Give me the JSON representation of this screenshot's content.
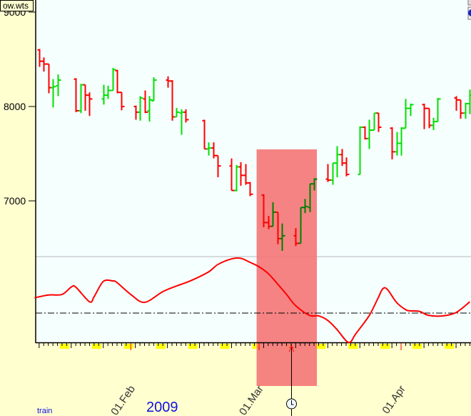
{
  "header": {
    "file_label": "ow.wts"
  },
  "footer": {
    "year": "2009",
    "mode_label": "train"
  },
  "colors": {
    "up": "#00e000",
    "down": "#ff0000",
    "up_dark": "#008000",
    "highlight": "#f47a7a",
    "indicator": "#ff0000",
    "plot_bg": "#f5fffe",
    "panel_bg": "#ffffd0",
    "weekend": "#ffff00"
  },
  "icons": [
    "scroll-button-icon",
    "globe-icon",
    "clock-icon",
    "cursor-marker-icon"
  ],
  "chart_data": {
    "type": "ohlc",
    "ylim": [
      6270,
      9120
    ],
    "grid": false,
    "y_ticks": [
      "9000",
      "8000",
      "7000"
    ],
    "x_ticks": [
      {
        "date": "2009-02-01",
        "label": "01.Feb"
      },
      {
        "date": "2009-03-01",
        "label": "01.Mar"
      },
      {
        "date": "2009-04-01",
        "label": "01.Apr"
      }
    ],
    "highlight_range": [
      "2009-02-28",
      "2009-03-13"
    ],
    "cursor_date": "2009-03-08",
    "bars": [
      {
        "date": "2009-01-12",
        "o": 8600,
        "h": 8610,
        "l": 8420,
        "c": 8480
      },
      {
        "date": "2009-01-13",
        "o": 8480,
        "h": 8520,
        "l": 8370,
        "c": 8450
      },
      {
        "date": "2009-01-14",
        "o": 8450,
        "h": 8450,
        "l": 8140,
        "c": 8200
      },
      {
        "date": "2009-01-15",
        "o": 8200,
        "h": 8290,
        "l": 7990,
        "c": 8210
      },
      {
        "date": "2009-01-16",
        "o": 8220,
        "h": 8340,
        "l": 8110,
        "c": 8280
      },
      {
        "date": "2009-01-20",
        "o": 8290,
        "h": 8300,
        "l": 7940,
        "c": 7955
      },
      {
        "date": "2009-01-21",
        "o": 7955,
        "h": 8240,
        "l": 7930,
        "c": 8230
      },
      {
        "date": "2009-01-22",
        "o": 8230,
        "h": 8230,
        "l": 7955,
        "c": 8120
      },
      {
        "date": "2009-01-23",
        "o": 8120,
        "h": 8150,
        "l": 7900,
        "c": 8080
      },
      {
        "date": "2009-01-26",
        "o": 8080,
        "h": 8230,
        "l": 8020,
        "c": 8120
      },
      {
        "date": "2009-01-27",
        "o": 8120,
        "h": 8220,
        "l": 8080,
        "c": 8170
      },
      {
        "date": "2009-01-28",
        "o": 8170,
        "h": 8410,
        "l": 8170,
        "c": 8390
      },
      {
        "date": "2009-01-29",
        "o": 8380,
        "h": 8390,
        "l": 8140,
        "c": 8150
      },
      {
        "date": "2009-01-30",
        "o": 8150,
        "h": 8150,
        "l": 7960,
        "c": 8000
      },
      {
        "date": "2009-02-02",
        "o": 8000,
        "h": 8010,
        "l": 7860,
        "c": 7940
      },
      {
        "date": "2009-02-03",
        "o": 7940,
        "h": 8110,
        "l": 7850,
        "c": 8090
      },
      {
        "date": "2009-02-04",
        "o": 8080,
        "h": 8170,
        "l": 7930,
        "c": 7940
      },
      {
        "date": "2009-02-05",
        "o": 7955,
        "h": 8110,
        "l": 7840,
        "c": 8070
      },
      {
        "date": "2009-02-06",
        "o": 8060,
        "h": 8310,
        "l": 8060,
        "c": 8280
      },
      {
        "date": "2009-02-09",
        "o": 8280,
        "h": 8320,
        "l": 8200,
        "c": 8270
      },
      {
        "date": "2009-02-10",
        "o": 8270,
        "h": 8280,
        "l": 7850,
        "c": 7890
      },
      {
        "date": "2009-02-11",
        "o": 7890,
        "h": 7985,
        "l": 7890,
        "c": 7940
      },
      {
        "date": "2009-02-12",
        "o": 7930,
        "h": 7970,
        "l": 7700,
        "c": 7940
      },
      {
        "date": "2009-02-13",
        "o": 7940,
        "h": 7970,
        "l": 7830,
        "c": 7860
      },
      {
        "date": "2009-02-17",
        "o": 7850,
        "h": 7860,
        "l": 7550,
        "c": 7550
      },
      {
        "date": "2009-02-18",
        "o": 7550,
        "h": 7620,
        "l": 7480,
        "c": 7560
      },
      {
        "date": "2009-02-19",
        "o": 7560,
        "h": 7620,
        "l": 7450,
        "c": 7480
      },
      {
        "date": "2009-02-20",
        "o": 7480,
        "h": 7480,
        "l": 7250,
        "c": 7370
      },
      {
        "date": "2009-02-23",
        "o": 7370,
        "h": 7450,
        "l": 7110,
        "c": 7110
      },
      {
        "date": "2009-02-24",
        "o": 7110,
        "h": 7380,
        "l": 7100,
        "c": 7360
      },
      {
        "date": "2009-02-25",
        "o": 7360,
        "h": 7410,
        "l": 7160,
        "c": 7270
      },
      {
        "date": "2009-02-26",
        "o": 7270,
        "h": 7390,
        "l": 7170,
        "c": 7190
      },
      {
        "date": "2009-02-27",
        "o": 7190,
        "h": 7200,
        "l": 7050,
        "c": 7070
      },
      {
        "date": "2009-03-02",
        "o": 7060,
        "h": 7070,
        "l": 6720,
        "c": 6770
      },
      {
        "date": "2009-03-03",
        "o": 6770,
        "h": 6840,
        "l": 6700,
        "c": 6730
      },
      {
        "date": "2009-03-04",
        "o": 6730,
        "h": 6985,
        "l": 6730,
        "c": 6880
      },
      {
        "date": "2009-03-05",
        "o": 6880,
        "h": 6880,
        "l": 6540,
        "c": 6600
      },
      {
        "date": "2009-03-06",
        "o": 6600,
        "h": 6760,
        "l": 6470,
        "c": 6630
      },
      {
        "date": "2009-03-09",
        "o": 6630,
        "h": 6710,
        "l": 6520,
        "c": 6550
      },
      {
        "date": "2009-03-10",
        "o": 6550,
        "h": 6930,
        "l": 6550,
        "c": 6930
      },
      {
        "date": "2009-03-11",
        "o": 6930,
        "h": 7020,
        "l": 6870,
        "c": 6940
      },
      {
        "date": "2009-03-12",
        "o": 6930,
        "h": 7180,
        "l": 6880,
        "c": 7180
      },
      {
        "date": "2009-03-13",
        "o": 7180,
        "h": 7240,
        "l": 7110,
        "c": 7230
      },
      {
        "date": "2009-03-16",
        "o": 7230,
        "h": 7390,
        "l": 7200,
        "c": 7220
      },
      {
        "date": "2009-03-17",
        "o": 7220,
        "h": 7400,
        "l": 7170,
        "c": 7400
      },
      {
        "date": "2009-03-18",
        "o": 7400,
        "h": 7580,
        "l": 7250,
        "c": 7490
      },
      {
        "date": "2009-03-19",
        "o": 7490,
        "h": 7550,
        "l": 7370,
        "c": 7400
      },
      {
        "date": "2009-03-20",
        "o": 7400,
        "h": 7460,
        "l": 7260,
        "c": 7280
      },
      {
        "date": "2009-03-23",
        "o": 7280,
        "h": 7790,
        "l": 7280,
        "c": 7780
      },
      {
        "date": "2009-03-24",
        "o": 7780,
        "h": 7790,
        "l": 7650,
        "c": 7660
      },
      {
        "date": "2009-03-25",
        "o": 7660,
        "h": 7860,
        "l": 7550,
        "c": 7750
      },
      {
        "date": "2009-03-26",
        "o": 7750,
        "h": 7930,
        "l": 7750,
        "c": 7930
      },
      {
        "date": "2009-03-27",
        "o": 7930,
        "h": 7930,
        "l": 7730,
        "c": 7780
      },
      {
        "date": "2009-03-30",
        "o": 7770,
        "h": 7780,
        "l": 7440,
        "c": 7520
      },
      {
        "date": "2009-03-31",
        "o": 7520,
        "h": 7730,
        "l": 7480,
        "c": 7610
      },
      {
        "date": "2009-04-01",
        "o": 7610,
        "h": 7780,
        "l": 7480,
        "c": 7770
      },
      {
        "date": "2009-04-02",
        "o": 7770,
        "h": 8080,
        "l": 7770,
        "c": 7980
      },
      {
        "date": "2009-04-03",
        "o": 7980,
        "h": 8030,
        "l": 7900,
        "c": 8020
      },
      {
        "date": "2009-04-06",
        "o": 8020,
        "h": 8030,
        "l": 7760,
        "c": 7980
      },
      {
        "date": "2009-04-07",
        "o": 7980,
        "h": 7980,
        "l": 7770,
        "c": 7800
      },
      {
        "date": "2009-04-08",
        "o": 7800,
        "h": 7880,
        "l": 7750,
        "c": 7840
      },
      {
        "date": "2009-04-09",
        "o": 7840,
        "h": 8090,
        "l": 7840,
        "c": 8080
      },
      {
        "date": "2009-04-13",
        "o": 8090,
        "h": 8110,
        "l": 7955,
        "c": 8070
      },
      {
        "date": "2009-04-14",
        "o": 8070,
        "h": 8070,
        "l": 7870,
        "c": 7930
      },
      {
        "date": "2009-04-15",
        "o": 7930,
        "h": 8040,
        "l": 7870,
        "c": 8030
      },
      {
        "date": "2009-04-16",
        "o": 8030,
        "h": 8180,
        "l": 7920,
        "c": 8120
      }
    ],
    "indicator": {
      "baseline": 0,
      "ylim": [
        -0.52,
        1.0
      ],
      "points": [
        [
          "2009-01-11",
          0.27
        ],
        [
          "2009-01-14",
          0.32
        ],
        [
          "2009-01-17",
          0.33
        ],
        [
          "2009-01-19",
          0.46
        ],
        [
          "2009-01-20",
          0.46
        ],
        [
          "2009-01-23",
          0.2
        ],
        [
          "2009-01-24",
          0.29
        ],
        [
          "2009-01-26",
          0.56
        ],
        [
          "2009-01-28",
          0.57
        ],
        [
          "2009-01-29",
          0.54
        ],
        [
          "2009-02-01",
          0.33
        ],
        [
          "2009-02-04",
          0.19
        ],
        [
          "2009-02-08",
          0.38
        ],
        [
          "2009-02-11",
          0.48
        ],
        [
          "2009-02-14",
          0.57
        ],
        [
          "2009-02-18",
          0.73
        ],
        [
          "2009-02-20",
          0.86
        ],
        [
          "2009-02-23",
          0.96
        ],
        [
          "2009-02-25",
          0.97
        ],
        [
          "2009-02-27",
          0.9
        ],
        [
          "2009-03-01",
          0.82
        ],
        [
          "2009-03-03",
          0.7
        ],
        [
          "2009-03-05",
          0.52
        ],
        [
          "2009-03-07",
          0.33
        ],
        [
          "2009-03-09",
          0.13
        ],
        [
          "2009-03-12",
          -0.04
        ],
        [
          "2009-03-14",
          -0.05
        ],
        [
          "2009-03-16",
          -0.13
        ],
        [
          "2009-03-18",
          -0.29
        ],
        [
          "2009-03-20",
          -0.49
        ],
        [
          "2009-03-21",
          -0.51
        ],
        [
          "2009-03-22",
          -0.38
        ],
        [
          "2009-03-25",
          -0.05
        ],
        [
          "2009-03-27",
          0.27
        ],
        [
          "2009-03-28",
          0.43
        ],
        [
          "2009-03-29",
          0.42
        ],
        [
          "2009-03-31",
          0.19
        ],
        [
          "2009-04-02",
          0.06
        ],
        [
          "2009-04-03",
          0.04
        ],
        [
          "2009-04-05",
          0.03
        ],
        [
          "2009-04-07",
          -0.04
        ],
        [
          "2009-04-10",
          -0.05
        ],
        [
          "2009-04-13",
          0.01
        ],
        [
          "2009-04-16",
          0.2
        ]
      ]
    }
  }
}
